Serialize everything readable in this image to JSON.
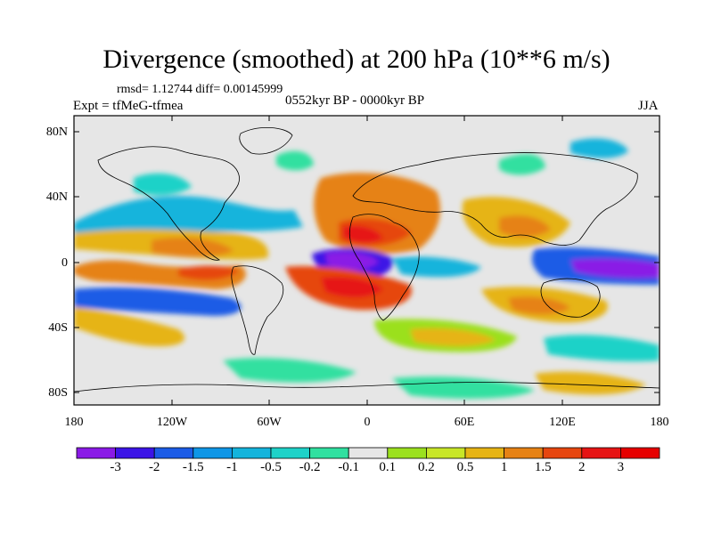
{
  "title": "Divergence (smoothed) at 200 hPa (10**6 m/s)",
  "stats": "rmsd= 1.12744 diff= 0.00145999",
  "experiment": "Expt = tfMeG-tfmea",
  "period": "0552kyr BP - 0000kyr BP",
  "season": "JJA",
  "map": {
    "background": "#e6e6e6",
    "y_ticks": [
      "80N",
      "40N",
      "0",
      "40S",
      "80S"
    ],
    "x_ticks": [
      "180",
      "120W",
      "60W",
      "0",
      "60E",
      "120E",
      "180"
    ]
  },
  "colorbar": {
    "labels": [
      "-3",
      "-2",
      "-1.5",
      "-1",
      "-0.5",
      "-0.2",
      "-0.1",
      "0.1",
      "0.2",
      "0.5",
      "1",
      "1.5",
      "2",
      "3"
    ],
    "colors": [
      "#8a1ae6",
      "#3c14e6",
      "#1c5ce6",
      "#0f96e6",
      "#14b4dc",
      "#1ed2c8",
      "#30e0a0",
      "#e6e6e6",
      "#9be01e",
      "#c8e628",
      "#e6b414",
      "#e68214",
      "#e6460f",
      "#e61414",
      "#e60000"
    ]
  }
}
